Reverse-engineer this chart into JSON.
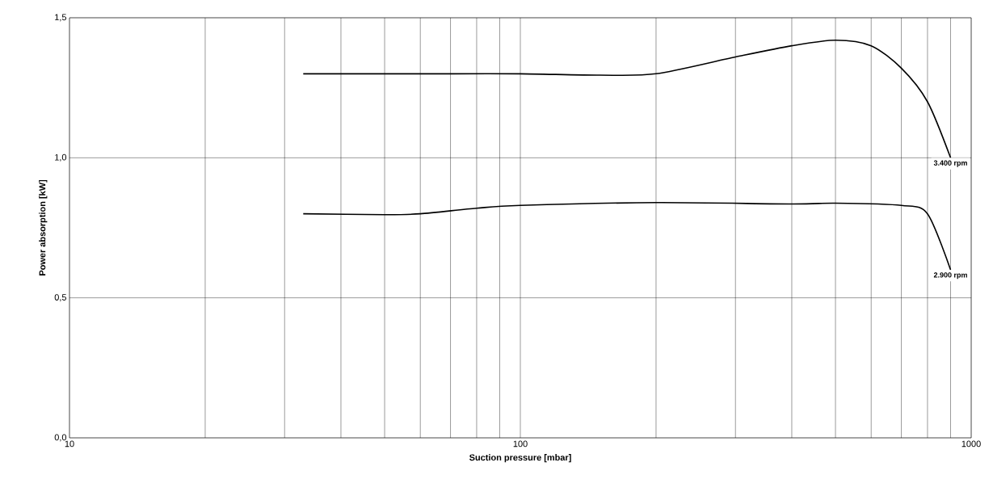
{
  "chart_data": {
    "type": "line",
    "xlabel": "Suction pressure [mbar]",
    "ylabel": "Power absorption [kW]",
    "log": "x",
    "xlim": [
      10,
      1000
    ],
    "xticks": [
      10,
      100,
      1000
    ],
    "ylim": [
      0,
      1.5
    ],
    "yticks": [
      {
        "value": 0,
        "label": "0,0"
      },
      {
        "value": 0.5,
        "label": "0,5"
      },
      {
        "value": 1.0,
        "label": "1,0"
      },
      {
        "value": 1.5,
        "label": "1,5"
      }
    ],
    "grid": true,
    "marker": "none",
    "line_style": "solid",
    "series": [
      {
        "color": "#000000",
        "x": [
          33,
          50,
          70,
          100,
          150,
          200,
          300,
          400,
          500,
          600,
          700,
          800,
          900
        ],
        "values": [
          1.3,
          1.3,
          1.3,
          1.3,
          1.295,
          1.3,
          1.36,
          1.4,
          1.42,
          1.4,
          1.32,
          1.2,
          1.0
        ]
      },
      {
        "color": "#000000",
        "x": [
          33,
          50,
          60,
          80,
          100,
          200,
          400,
          500,
          700,
          800,
          900
        ],
        "values": [
          0.8,
          0.797,
          0.8,
          0.82,
          0.83,
          0.84,
          0.835,
          0.838,
          0.83,
          0.8,
          0.6
        ]
      }
    ],
    "annotations": [
      "3.400 rpm",
      "2.900 rpm"
    ]
  }
}
